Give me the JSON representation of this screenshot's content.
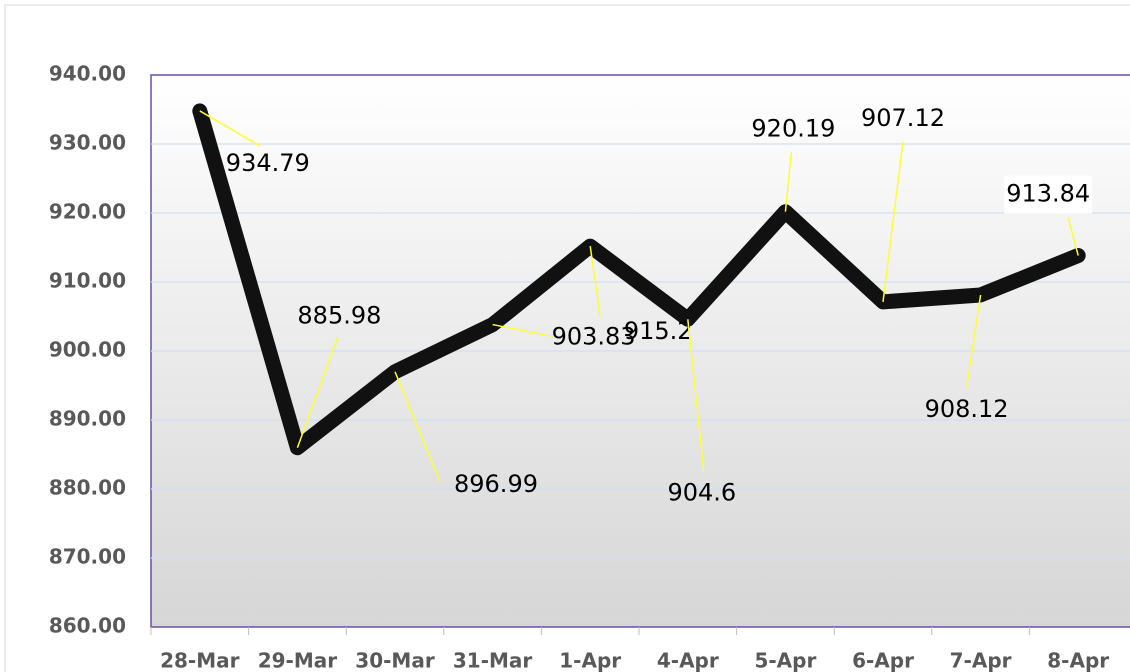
{
  "chart_data": {
    "type": "line",
    "categories": [
      "28-Mar",
      "29-Mar",
      "30-Mar",
      "31-Mar",
      "1-Apr",
      "4-Apr",
      "5-Apr",
      "6-Apr",
      "7-Apr",
      "8-Apr"
    ],
    "series": [
      {
        "color": "#111111",
        "values": [
          934.79,
          885.98,
          896.99,
          903.83,
          915.2,
          904.6,
          920.19,
          907.12,
          908.12,
          913.84
        ]
      }
    ],
    "ylim": [
      860,
      940
    ],
    "yticks": [
      {
        "value": 860,
        "label": "860.00"
      },
      {
        "value": 870,
        "label": "870.00"
      },
      {
        "value": 880,
        "label": "880.00"
      },
      {
        "value": 890,
        "label": "890.00"
      },
      {
        "value": 900,
        "label": "900.00"
      },
      {
        "value": 910,
        "label": "910.00"
      },
      {
        "value": 920,
        "label": "920.00"
      },
      {
        "value": 930,
        "label": "930.00"
      },
      {
        "value": 940,
        "label": "940.00"
      }
    ],
    "grid": true
  }
}
